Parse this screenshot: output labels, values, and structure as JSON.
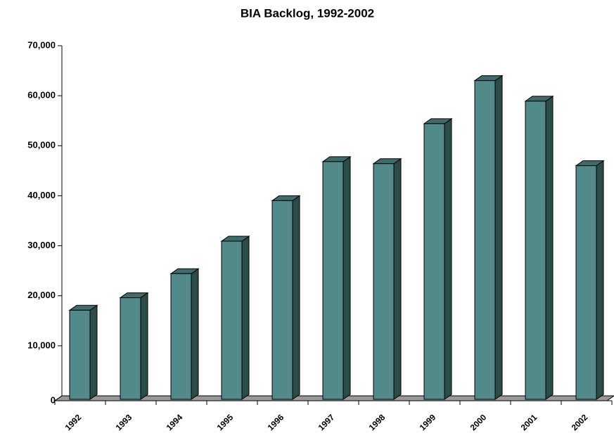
{
  "chart_data": {
    "type": "bar3d",
    "title": "BIA Backlog, 1992-2002",
    "categories": [
      "1992",
      "1993",
      "1994",
      "1995",
      "1996",
      "1997",
      "1998",
      "1999",
      "2000",
      "2001",
      "2002"
    ],
    "values": [
      18100,
      20600,
      25400,
      31900,
      40000,
      47800,
      47400,
      55400,
      64000,
      59900,
      47000
    ],
    "color": "#528a8a",
    "ylim": [
      0,
      70000
    ],
    "yticks": [
      0,
      {
        "value": 10000,
        "label": "10,000"
      },
      {
        "value": 20000,
        "label": "20,000"
      },
      {
        "value": 30000,
        "label": "30,000"
      },
      {
        "value": 40000,
        "label": "40,000"
      },
      {
        "value": 50000,
        "label": "50,000"
      },
      {
        "value": 60000,
        "label": "60,000"
      },
      {
        "value": 70000,
        "label": "70,000"
      }
    ],
    "grid": false
  }
}
